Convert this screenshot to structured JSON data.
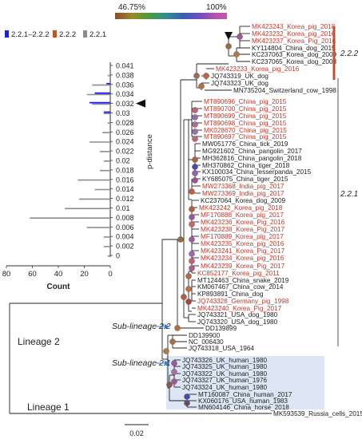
{
  "colorbar": {
    "min_label": "46.75%",
    "max_label": "100%"
  },
  "legend": [
    {
      "label": "2.2.1–2.2.2",
      "color": "#1f1fd6"
    },
    {
      "label": "2.2.2",
      "color": "#c0532b"
    },
    {
      "label": "2.2.1",
      "color": "#8c8c8c"
    }
  ],
  "histogram": {
    "xlabel": "Count",
    "ylabel": "p-distance",
    "x_ticks": [
      "80",
      "60",
      "40",
      "20",
      "0"
    ],
    "y_ticks": [
      "0.041",
      "0.038",
      "0.036",
      "0.034",
      "0.032",
      "0.03",
      "0.028",
      "0.026",
      "0.024",
      "0.022",
      "0.02",
      "0.018",
      "0.016",
      "0.014",
      "0.012",
      "0.01",
      "0.008",
      "0.006",
      "0.004",
      "0.002",
      "0"
    ],
    "marked_value": "0.032",
    "series": {
      "blue": [
        0,
        0,
        3,
        12,
        16,
        5,
        0,
        0,
        0,
        0,
        0,
        0,
        0,
        0,
        0,
        0,
        0,
        0,
        0,
        0,
        0
      ],
      "orange": [
        0,
        0,
        0,
        0,
        0,
        0,
        0,
        0,
        0,
        0,
        0,
        0,
        0,
        0,
        0,
        0,
        0,
        0,
        0,
        0,
        0
      ],
      "gray": [
        0,
        2,
        14,
        18,
        14,
        5,
        2,
        6,
        16,
        8,
        5,
        8,
        25,
        12,
        24,
        35,
        62,
        18,
        5,
        5,
        2
      ]
    }
  },
  "clades": [
    {
      "label": "2.2.2",
      "color": "#c0532b"
    },
    {
      "label": "2.2.1",
      "color": "#555555"
    }
  ],
  "lineages": {
    "lineage2": "Lineage 2",
    "lineage1": "Lineage 1"
  },
  "sublineages": {
    "sub22": "Sub-lineage 2.2",
    "sub21": "Sub-lineage 2.1"
  },
  "scale_label": "0.02",
  "taxa": [
    {
      "label": "MK423243_Korea_pig_2018",
      "color": "#c0392b"
    },
    {
      "label": "MK423232_Korea_pig_2016",
      "color": "#c0392b"
    },
    {
      "label": "MK423237_Korea_Pig_2016",
      "color": "#c0392b"
    },
    {
      "label": "KY114804_China_dog_2015",
      "color": "#222222"
    },
    {
      "label": "KC237063_Korea_dog_2009",
      "color": "#222222"
    },
    {
      "label": "KC237065_Korea_dog_2008",
      "color": "#222222"
    },
    {
      "label": "MK423233_Korea_pig_2016",
      "color": "#c0392b"
    },
    {
      "label": "JQ743319_UK_dog",
      "color": "#222222"
    },
    {
      "label": "JQ743323_UK_dog",
      "color": "#222222"
    },
    {
      "label": "MN735204_Switzerland_cow_1998",
      "color": "#222222"
    },
    {
      "label": "MT890696_China_pig_2015",
      "color": "#c0392b"
    },
    {
      "label": "MT890700_China_pig_2015",
      "color": "#c0392b"
    },
    {
      "label": "MT890699_China_pig_2015",
      "color": "#c0392b"
    },
    {
      "label": "MT890698_China_pig_2015",
      "color": "#c0392b"
    },
    {
      "label": "MK028670_China_pig_2015",
      "color": "#c0392b"
    },
    {
      "label": "MT890697_China_pig_2015",
      "color": "#c0392b"
    },
    {
      "label": "MW051776_China_tick_2019",
      "color": "#222222"
    },
    {
      "label": "MG921602_China_pangolin_2017",
      "color": "#222222"
    },
    {
      "label": "MH362816_China_pangolin_2018",
      "color": "#222222"
    },
    {
      "label": "MH370862_China_tiger_2018",
      "color": "#222222"
    },
    {
      "label": "KX100034_China_lesserpanda_2015",
      "color": "#222222"
    },
    {
      "label": "KY685075_China_tiger_2015",
      "color": "#222222"
    },
    {
      "label": "MW273368_India_pig_2017",
      "color": "#c0392b"
    },
    {
      "label": "MW273369_India_pig_2017",
      "color": "#c0392b"
    },
    {
      "label": "KC237064_Korea_dog_2009",
      "color": "#222222"
    },
    {
      "label": "MK423242_Korea_pig_2018",
      "color": "#c0392b"
    },
    {
      "label": "MF170888_Korea_pig_2017",
      "color": "#c0392b"
    },
    {
      "label": "MK423236_Korea_Pig_2016",
      "color": "#c0392b"
    },
    {
      "label": "MK423238_Korea_Pig_2017",
      "color": "#c0392b"
    },
    {
      "label": "MF170889_Korea_pig_2017",
      "color": "#c0392b"
    },
    {
      "label": "MK423235_Korea_pig_2016",
      "color": "#c0392b"
    },
    {
      "label": "MK423241_Korea_Pig_2017",
      "color": "#c0392b"
    },
    {
      "label": "MK423234_Korea_pig_2016",
      "color": "#c0392b"
    },
    {
      "label": "MK423239_Korea_Pig_2017",
      "color": "#c0392b"
    },
    {
      "label": "KC852177_Korea_pig_2011",
      "color": "#c0392b"
    },
    {
      "label": "MT124463_China_snake_2019",
      "color": "#222222"
    },
    {
      "label": "KM067467_China_cow_2014",
      "color": "#222222"
    },
    {
      "label": "KP893891_China_dog",
      "color": "#222222"
    },
    {
      "label": "JQ743328_Germany_pig_1998",
      "color": "#c0392b"
    },
    {
      "label": "MK423240_Korea_Pig_2017",
      "color": "#c0392b"
    },
    {
      "label": "JQ743321_USA_dog_1980",
      "color": "#222222"
    },
    {
      "label": "JQ743320_USA_dog_1980",
      "color": "#222222"
    },
    {
      "label": "DD139899",
      "color": "#222222"
    },
    {
      "label": "DD139900",
      "color": "#222222"
    },
    {
      "label": "NC_006430",
      "color": "#222222"
    },
    {
      "label": "JQ743318_USA_1964",
      "color": "#222222"
    },
    {
      "label": "JQ743326_UK_human_1980",
      "color": "#222222"
    },
    {
      "label": "JQ743325_UK_human_1980",
      "color": "#222222"
    },
    {
      "label": "JQ743322_UK_human_1980",
      "color": "#222222"
    },
    {
      "label": "JQ743327_UK_human_1976",
      "color": "#222222"
    },
    {
      "label": "JQ743324_UK_human_1980",
      "color": "#222222"
    },
    {
      "label": "MT160087_China_human_2017",
      "color": "#222222"
    },
    {
      "label": "KX060176_USA_human_1983",
      "color": "#222222"
    },
    {
      "label": "MN604146_China_horse_2018",
      "color": "#222222"
    },
    {
      "label": "MK593539_Russia_cells_2015",
      "color": "#222222"
    }
  ]
}
